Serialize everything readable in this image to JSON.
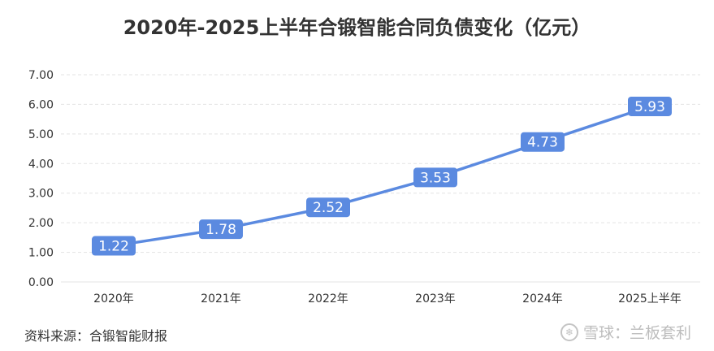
{
  "title": "2020年-2025上半年合锻智能合同负债变化（亿元）",
  "source": "资料来源：合锻智能财报",
  "watermark": {
    "text": "雪球：兰板套利",
    "icon": "snowball-logo-icon"
  },
  "colors": {
    "line": "#5b8ae0",
    "label_bg": "#5b8ae0",
    "label_text": "#ffffff",
    "grid": "#e3e3e3",
    "axis_text": "#333333"
  },
  "chart_data": {
    "type": "line",
    "title": "2020年-2025上半年合锻智能合同负债变化（亿元）",
    "categories": [
      "2020年",
      "2021年",
      "2022年",
      "2023年",
      "2024年",
      "2025上半年"
    ],
    "series": [
      {
        "values": [
          1.22,
          1.78,
          2.52,
          3.53,
          4.73,
          5.93
        ]
      }
    ],
    "data_labels": [
      "1.22",
      "1.78",
      "2.52",
      "3.53",
      "4.73",
      "5.93"
    ],
    "y_ticks": [
      "0.00",
      "1.00",
      "2.00",
      "3.00",
      "4.00",
      "5.00",
      "6.00",
      "7.00"
    ],
    "xlabel": "",
    "ylabel": "",
    "ylim": [
      0,
      7
    ],
    "grid": true,
    "legend": "none"
  }
}
